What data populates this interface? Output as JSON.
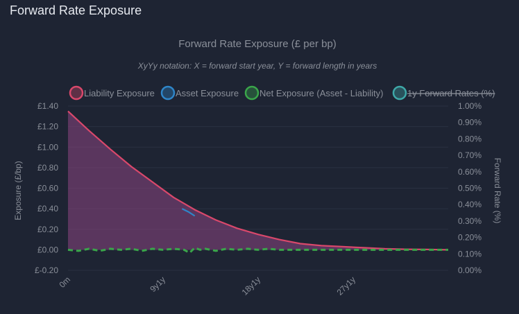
{
  "panel": {
    "title": "Forward Rate Exposure"
  },
  "chart_data": {
    "type": "area",
    "title": "Forward Rate Exposure (£ per bp)",
    "subtitle": "XyYy notation: X = forward start year, Y = forward length in years",
    "ylabel": "Exposure (£/bp)",
    "y2label": "Forward Rate (%)",
    "ylim": [
      -0.2,
      1.4
    ],
    "y2lim": [
      0.0,
      1.0
    ],
    "y_ticks": [
      "£1.40",
      "£1.20",
      "£1.00",
      "£0.80",
      "£0.60",
      "£0.40",
      "£0.20",
      "£0.00",
      "£-0.20"
    ],
    "y2_ticks": [
      "1.00%",
      "0.90%",
      "0.80%",
      "0.70%",
      "0.60%",
      "0.50%",
      "0.40%",
      "0.30%",
      "0.20%",
      "0.10%",
      "0.00%"
    ],
    "x_ticks": [
      {
        "label": "0m",
        "x": 0
      },
      {
        "label": "9y1y",
        "x": 9
      },
      {
        "label": "18y1y",
        "x": 18
      },
      {
        "label": "27y1y",
        "x": 27
      }
    ],
    "xlim": [
      0,
      36
    ],
    "grid": true,
    "legend_position": "top",
    "legend": [
      {
        "name": "Liability Exposure",
        "color": "#d9486b",
        "hidden": false
      },
      {
        "name": "Asset Exposure",
        "color": "#2f86c9",
        "hidden": false
      },
      {
        "name": "Net Exposure (Asset - Liability)",
        "color": "#3aa64a",
        "hidden": false
      },
      {
        "name": "1y Forward Rates (%)",
        "color": "#3ea8a8",
        "hidden": true
      }
    ],
    "series": [
      {
        "name": "Liability Exposure",
        "color": "#d9486b",
        "fill": "rgba(140,70,130,0.55)",
        "x": [
          0,
          2,
          4,
          6,
          8,
          10,
          12,
          14,
          16,
          18,
          20,
          22,
          24,
          26,
          28,
          30,
          32,
          34,
          36
        ],
        "values": [
          1.35,
          1.16,
          0.98,
          0.81,
          0.66,
          0.51,
          0.39,
          0.29,
          0.21,
          0.15,
          0.1,
          0.06,
          0.04,
          0.03,
          0.02,
          0.01,
          0.005,
          0.003,
          0.0
        ]
      },
      {
        "name": "Asset Exposure",
        "color": "#2f86c9",
        "x": [
          10.8,
          11.4,
          12.0
        ],
        "values": [
          0.4,
          0.37,
          0.33
        ]
      },
      {
        "name": "Net Exposure (Asset - Liability)",
        "color": "#3aa64a",
        "dashed": true,
        "x": [
          0,
          1,
          2,
          3,
          4,
          5,
          6,
          7,
          8,
          9,
          10,
          11,
          11.5,
          12,
          12.5,
          13,
          14,
          15,
          16,
          17,
          18,
          19,
          20,
          22,
          24,
          26,
          28,
          30,
          32,
          34,
          36
        ],
        "values": [
          0.0,
          -0.01,
          0.01,
          -0.01,
          0.01,
          0.0,
          0.01,
          -0.01,
          0.01,
          0.0,
          0.01,
          0.0,
          -0.03,
          0.02,
          0.0,
          0.01,
          -0.01,
          0.01,
          0.0,
          0.01,
          0.0,
          0.01,
          0.0,
          0.0,
          0.0,
          0.0,
          0.0,
          0.0,
          0.0,
          0.0,
          0.0
        ]
      }
    ]
  }
}
